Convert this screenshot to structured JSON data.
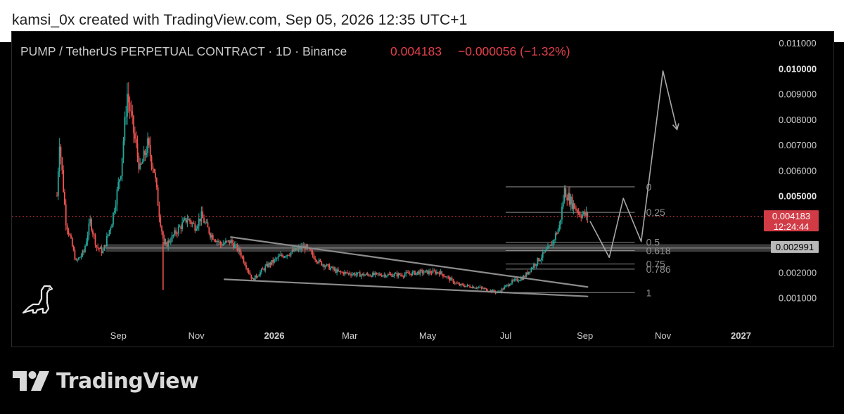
{
  "header": {
    "attribution": "kamsi_0x created with TradingView.com, Sep 05, 2026 12:35 UTC+1"
  },
  "footer": {
    "brand": "TradingView"
  },
  "icons": {
    "brand_logo": "tradingview-logo-icon",
    "watermark": "dinosaur-icon"
  },
  "colors": {
    "background": "#000000",
    "up_candle": "#26a69a",
    "down_candle": "#ef5350",
    "price_text": "#e3404b",
    "axis_text": "#cfcfcf",
    "drawing": "#a8a8a8"
  },
  "chart_data": {
    "type": "candlestick",
    "title": "PUMP / TetherUS PERPETUAL CONTRACT · 1D · Binance",
    "last_price": "0.004183",
    "change": "−0.000056 (−1.32%)",
    "price_label": "0.004183",
    "countdown": "12:24:44",
    "level_label": "0.002991",
    "y_axis": {
      "ticks": [
        "0.011000",
        "0.010000",
        "0.009000",
        "0.008000",
        "0.007000",
        "0.006000",
        "0.005000",
        "0.002000",
        "0.001000"
      ],
      "ylim": [
        0.0003,
        0.0112
      ]
    },
    "x_axis": {
      "ticks": [
        "Sep",
        "Nov",
        "2026",
        "Mar",
        "May",
        "Jul",
        "Sep",
        "Nov",
        "2027"
      ],
      "start": "2025-07-15",
      "end": "2027-01-20"
    },
    "price_path": [
      [
        "2025-07-15",
        0.005
      ],
      [
        "2025-07-17",
        0.0072
      ],
      [
        "2025-07-22",
        0.004
      ],
      [
        "2025-07-27",
        0.003
      ],
      [
        "2025-07-30",
        0.0024
      ],
      [
        "2025-08-05",
        0.0028
      ],
      [
        "2025-08-10",
        0.004
      ],
      [
        "2025-08-15",
        0.003
      ],
      [
        "2025-08-20",
        0.0028
      ],
      [
        "2025-08-27",
        0.004
      ],
      [
        "2025-09-03",
        0.006
      ],
      [
        "2025-09-08",
        0.009
      ],
      [
        "2025-09-12",
        0.0078
      ],
      [
        "2025-09-18",
        0.006
      ],
      [
        "2025-09-24",
        0.007
      ],
      [
        "2025-09-29",
        0.006
      ],
      [
        "2025-10-03",
        0.0043
      ],
      [
        "2025-10-07",
        0.003
      ],
      [
        "2025-10-12",
        0.0033
      ],
      [
        "2025-10-18",
        0.0037
      ],
      [
        "2025-10-25",
        0.0041
      ],
      [
        "2025-10-31",
        0.0038
      ],
      [
        "2025-11-05",
        0.0042
      ],
      [
        "2025-11-12",
        0.0035
      ],
      [
        "2025-11-20",
        0.0031
      ],
      [
        "2025-11-28",
        0.0032
      ],
      [
        "2025-12-05",
        0.0028
      ],
      [
        "2025-12-15",
        0.0017
      ],
      [
        "2025-12-25",
        0.0022
      ],
      [
        "2026-01-05",
        0.0026
      ],
      [
        "2026-01-15",
        0.0028
      ],
      [
        "2026-01-25",
        0.003
      ],
      [
        "2026-02-05",
        0.0024
      ],
      [
        "2026-02-20",
        0.002
      ],
      [
        "2026-03-10",
        0.0019
      ],
      [
        "2026-03-25",
        0.0019
      ],
      [
        "2026-04-10",
        0.0019
      ],
      [
        "2026-04-25",
        0.002
      ],
      [
        "2026-05-10",
        0.002
      ],
      [
        "2026-05-25",
        0.0015
      ],
      [
        "2026-06-10",
        0.0014
      ],
      [
        "2026-06-25",
        0.0012
      ],
      [
        "2026-07-05",
        0.0016
      ],
      [
        "2026-07-15",
        0.0018
      ],
      [
        "2026-07-25",
        0.0024
      ],
      [
        "2026-08-05",
        0.003
      ],
      [
        "2026-08-12",
        0.0038
      ],
      [
        "2026-08-16",
        0.0052
      ],
      [
        "2026-08-22",
        0.0047
      ],
      [
        "2026-08-28",
        0.0043
      ],
      [
        "2026-09-04",
        0.0042
      ]
    ],
    "spike_low": [
      "2025-10-06",
      0.0013
    ],
    "fib_levels": [
      {
        "label": "0",
        "price": 0.00535
      },
      {
        "label": "0.25",
        "price": 0.00435
      },
      {
        "label": "0.5",
        "price": 0.00318
      },
      {
        "label": "0.618",
        "price": 0.00285
      },
      {
        "label": "0.75",
        "price": 0.00232
      },
      {
        "label": "0.786",
        "price": 0.00212
      },
      {
        "label": "1",
        "price": 0.0012
      }
    ],
    "fib_range": [
      "2026-07-01",
      "2026-10-10"
    ],
    "support_zone": {
      "low": 0.0028,
      "high": 0.0031,
      "from": "2025-08-22"
    },
    "wedge_upper": [
      [
        "2025-11-28",
        0.00338
      ],
      [
        "2026-09-03",
        0.00142
      ]
    ],
    "wedge_lower": [
      [
        "2025-11-23",
        0.00172
      ],
      [
        "2026-09-03",
        0.00105
      ]
    ],
    "projection": [
      [
        "2026-09-05",
        0.004
      ],
      [
        "2026-09-20",
        0.00258
      ],
      [
        "2026-10-01",
        0.0049
      ],
      [
        "2026-10-15",
        0.0032
      ],
      [
        "2026-11-01",
        0.0099
      ],
      [
        "2026-11-12",
        0.0076
      ]
    ]
  }
}
